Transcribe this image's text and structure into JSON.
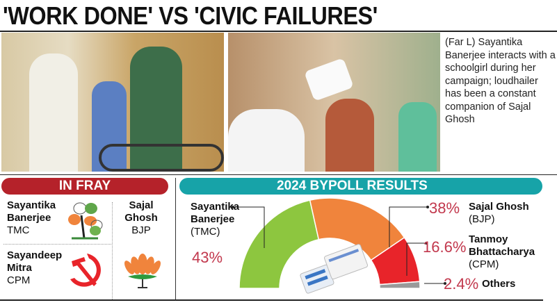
{
  "headline": "'WORK DONE' VS 'CIVIC FAILURES'",
  "caption": "(Far L) Sayantika Banerjee interacts with a schoolgirl during her campaign; loudhailer has been a constant companion of Sajal Ghosh",
  "in_fray": {
    "title": "IN FRAY",
    "candidates": [
      {
        "name_line1": "Sayantika",
        "name_line2": "Banerjee",
        "party": "TMC",
        "symbol": "tmc-flower-icon"
      },
      {
        "name_line1": "Sajal",
        "name_line2": "Ghosh",
        "party": "BJP",
        "symbol": "bjp-lotus-icon"
      },
      {
        "name_line1": "Sayandeep",
        "name_line2": "Mitra",
        "party": "CPM",
        "symbol": "hammer-sickle-icon"
      }
    ]
  },
  "colors": {
    "in_fray_bar": "#b5222a",
    "results_bar": "#17a3a8",
    "pct_text": "#c2384d"
  },
  "chart_data": {
    "type": "pie",
    "title": "2024 BYPOLL RESULTS",
    "shape": "half-donut",
    "slices": [
      {
        "name_line1": "Sayantika",
        "name_line2": "Banerjee",
        "party": "(TMC)",
        "value": 43,
        "label": "43%",
        "color": "#8dc63f"
      },
      {
        "name_line1": "Sajal Ghosh",
        "name_line2": "",
        "party": "(BJP)",
        "value": 38,
        "label": "38%",
        "color": "#f0843c"
      },
      {
        "name_line1": "Tanmoy",
        "name_line2": "Bhattacharya",
        "party": "(CPM)",
        "value": 16.6,
        "label": "16.6%",
        "color": "#e8242a"
      },
      {
        "name_line1": "Others",
        "name_line2": "",
        "party": "",
        "value": 2.4,
        "label": "2.4%",
        "color": "#9a9a9a"
      }
    ]
  }
}
